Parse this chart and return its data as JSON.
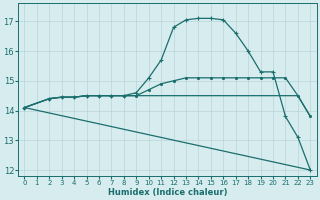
{
  "xlabel": "Humidex (Indice chaleur)",
  "bg_color": "#d7ecee",
  "grid_color": "#b8d4d8",
  "line_color": "#1a6e6e",
  "xlim": [
    -0.5,
    23.5
  ],
  "ylim": [
    11.8,
    17.6
  ],
  "yticks": [
    12,
    13,
    14,
    15,
    16,
    17
  ],
  "xticks": [
    0,
    1,
    2,
    3,
    4,
    5,
    6,
    7,
    8,
    9,
    10,
    11,
    12,
    13,
    14,
    15,
    16,
    17,
    18,
    19,
    20,
    21,
    22,
    23
  ],
  "line_arch": {
    "x": [
      0,
      2,
      3,
      4,
      5,
      6,
      7,
      8,
      9,
      10,
      11,
      12,
      13,
      14,
      15,
      16,
      17,
      18,
      19,
      20,
      21,
      22,
      23
    ],
    "y": [
      14.1,
      14.4,
      14.45,
      14.45,
      14.5,
      14.5,
      14.5,
      14.5,
      14.6,
      15.1,
      15.7,
      16.8,
      17.05,
      17.1,
      17.1,
      17.05,
      16.6,
      16.0,
      15.3,
      15.3,
      13.8,
      13.1,
      12.0
    ]
  },
  "line_flat_up": {
    "x": [
      0,
      2,
      3,
      4,
      5,
      6,
      7,
      8,
      9,
      10,
      11,
      12,
      13,
      14,
      15,
      16,
      17,
      18,
      19,
      20,
      21,
      22,
      23
    ],
    "y": [
      14.1,
      14.4,
      14.45,
      14.45,
      14.5,
      14.5,
      14.5,
      14.5,
      14.5,
      14.7,
      14.9,
      15.0,
      15.1,
      15.1,
      15.1,
      15.1,
      15.1,
      15.1,
      15.1,
      15.1,
      15.1,
      14.5,
      13.8
    ]
  },
  "line_slope_down": {
    "x": [
      0,
      23
    ],
    "y": [
      14.1,
      12.0
    ]
  },
  "line_plateau_high": {
    "x": [
      0,
      2,
      3,
      4,
      5,
      6,
      7,
      8,
      9,
      10,
      11,
      12,
      13,
      14,
      15,
      16,
      17,
      18,
      19,
      20,
      21,
      22,
      23
    ],
    "y": [
      14.1,
      14.4,
      14.45,
      14.45,
      14.5,
      14.5,
      14.5,
      14.5,
      14.5,
      14.5,
      14.5,
      14.5,
      14.5,
      14.5,
      14.5,
      14.5,
      14.5,
      14.5,
      14.5,
      14.5,
      14.5,
      14.5,
      13.8
    ]
  }
}
